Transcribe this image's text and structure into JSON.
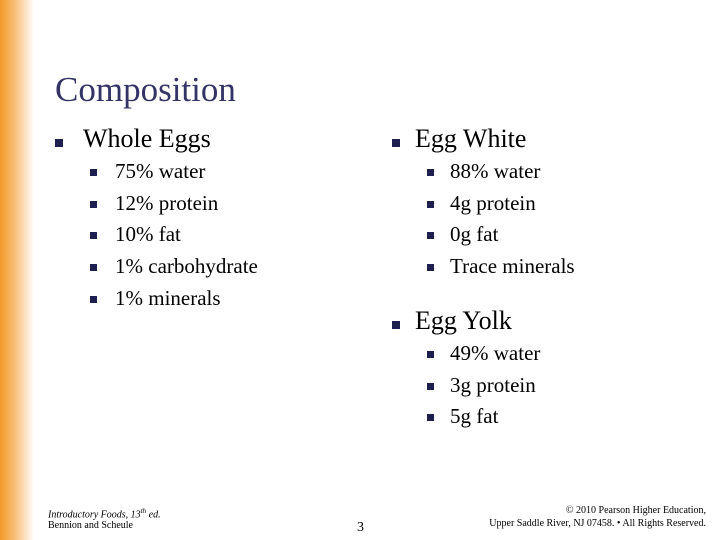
{
  "title": "Composition",
  "sections": [
    {
      "heading": "Whole Eggs",
      "items": [
        "75% water",
        "12% protein",
        "10% fat",
        "1% carbohydrate",
        "1% minerals"
      ]
    },
    {
      "heading": "Egg White",
      "items": [
        "88% water",
        "4g protein",
        "0g fat",
        "Trace minerals"
      ]
    },
    {
      "heading": "Egg Yolk",
      "items": [
        "49% water",
        "3g protein",
        "5g fat"
      ]
    }
  ],
  "footer": {
    "book": {
      "main": "Introductory Foods, 13",
      "sup": "th",
      "rest": " ed."
    },
    "authors": "Bennion and Scheule",
    "page": "3",
    "copyright": [
      "© 2010 Pearson Higher Education,",
      "Upper Saddle River, NJ 07458. • All Rights Reserved."
    ]
  }
}
